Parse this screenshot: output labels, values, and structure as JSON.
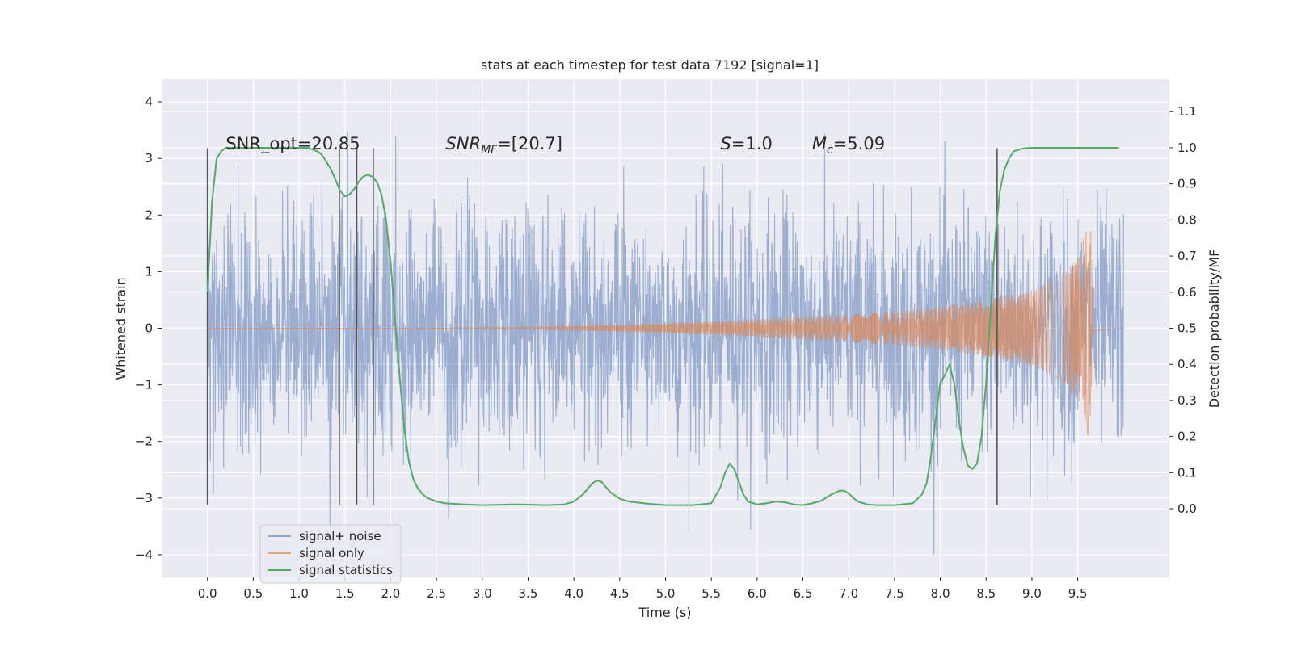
{
  "chart_data": {
    "type": "line",
    "title": "stats at each timestep for test data 7192 [signal=1]",
    "xlabel": "Time (s)",
    "ylabel": "Whitened strain",
    "ylabel_right": "Detection probability/MF",
    "xlim": [
      -0.5,
      10.5
    ],
    "ylim": [
      -4.4,
      4.4
    ],
    "ylim_right": [
      -0.19,
      1.19
    ],
    "x_ticks": [
      0.0,
      0.5,
      1.0,
      1.5,
      2.0,
      2.5,
      3.0,
      3.5,
      4.0,
      4.5,
      5.0,
      5.5,
      6.0,
      6.5,
      7.0,
      7.5,
      8.0,
      8.5,
      9.0,
      9.5
    ],
    "x_tick_labels": [
      "0.0",
      "0.5",
      "1.0",
      "1.5",
      "2.0",
      "2.5",
      "3.0",
      "3.5",
      "4.0",
      "4.5",
      "5.0",
      "5.5",
      "6.0",
      "6.5",
      "7.0",
      "7.5",
      "8.0",
      "8.5",
      "9.0",
      "9.5"
    ],
    "y_ticks": [
      4,
      3,
      2,
      1,
      0,
      -1,
      -2,
      -3,
      -4
    ],
    "y_tick_labels": [
      "4",
      "3",
      "2",
      "1",
      "0",
      "−1",
      "−2",
      "−3",
      "−4"
    ],
    "y_right_ticks": [
      1.1,
      1.0,
      0.9,
      0.8,
      0.7,
      0.6,
      0.5,
      0.4,
      0.3,
      0.2,
      0.1,
      0.0
    ],
    "y_right_tick_labels": [
      "1.1",
      "1.0",
      "0.9",
      "0.8",
      "0.7",
      "0.6",
      "0.5",
      "0.4",
      "0.3",
      "0.2",
      "0.1",
      "0.0"
    ],
    "grid": true,
    "legend_position": "lower-left",
    "colors": {
      "background": "#eaeaf2",
      "noise": "#4c72b0",
      "signal": "#dd8452",
      "stats": "#55a868",
      "vlines": "#555555"
    },
    "series": [
      {
        "name": "signal+ noise",
        "axis": "left",
        "noise_sd": 1.0,
        "x_range": [
          0.0,
          10.0
        ]
      },
      {
        "name": "signal only",
        "axis": "left",
        "description_amplitude_envelope": [
          [
            0.0,
            0.0
          ],
          [
            2.5,
            0.0
          ],
          [
            3.5,
            0.02
          ],
          [
            4.5,
            0.06
          ],
          [
            5.5,
            0.12
          ],
          [
            6.5,
            0.2
          ],
          [
            7.5,
            0.3
          ],
          [
            8.0,
            0.38
          ],
          [
            8.5,
            0.5
          ],
          [
            9.0,
            0.68
          ],
          [
            9.3,
            0.9
          ],
          [
            9.5,
            1.25
          ],
          [
            9.6,
            1.8
          ],
          [
            9.65,
            2.2
          ],
          [
            9.67,
            0.05
          ],
          [
            10.0,
            0.0
          ]
        ]
      },
      {
        "name": "signal statistics",
        "axis": "right",
        "x": [
          0.0,
          0.05,
          0.1,
          0.15,
          0.2,
          0.3,
          0.5,
          0.8,
          1.0,
          1.1,
          1.15,
          1.2,
          1.25,
          1.3,
          1.35,
          1.4,
          1.45,
          1.5,
          1.55,
          1.6,
          1.65,
          1.7,
          1.75,
          1.8,
          1.85,
          1.9,
          1.95,
          2.0,
          2.05,
          2.1,
          2.15,
          2.2,
          2.25,
          2.3,
          2.35,
          2.4,
          2.5,
          2.6,
          2.8,
          3.0,
          3.4,
          3.7,
          3.9,
          4.0,
          4.1,
          4.2,
          4.25,
          4.3,
          4.35,
          4.4,
          4.5,
          4.6,
          4.8,
          5.0,
          5.3,
          5.5,
          5.6,
          5.65,
          5.7,
          5.75,
          5.8,
          5.85,
          5.9,
          6.0,
          6.1,
          6.2,
          6.3,
          6.4,
          6.5,
          6.6,
          6.7,
          6.8,
          6.9,
          6.95,
          7.0,
          7.05,
          7.1,
          7.2,
          7.3,
          7.5,
          7.7,
          7.8,
          7.85,
          7.9,
          7.95,
          8.0,
          8.05,
          8.1,
          8.15,
          8.2,
          8.25,
          8.3,
          8.35,
          8.4,
          8.45,
          8.5,
          8.55,
          8.6,
          8.65,
          8.7,
          8.75,
          8.8,
          8.9,
          9.0,
          9.5,
          9.95
        ],
        "values": [
          0.6,
          0.85,
          0.97,
          0.99,
          1.0,
          1.0,
          1.0,
          1.0,
          1.0,
          1.0,
          0.995,
          0.99,
          0.98,
          0.96,
          0.94,
          0.91,
          0.88,
          0.865,
          0.87,
          0.885,
          0.905,
          0.92,
          0.925,
          0.92,
          0.905,
          0.87,
          0.8,
          0.68,
          0.52,
          0.36,
          0.22,
          0.13,
          0.08,
          0.055,
          0.04,
          0.03,
          0.02,
          0.015,
          0.012,
          0.01,
          0.012,
          0.01,
          0.012,
          0.02,
          0.04,
          0.07,
          0.078,
          0.075,
          0.06,
          0.045,
          0.028,
          0.02,
          0.014,
          0.01,
          0.01,
          0.015,
          0.06,
          0.1,
          0.125,
          0.11,
          0.075,
          0.04,
          0.02,
          0.012,
          0.015,
          0.02,
          0.018,
          0.012,
          0.01,
          0.015,
          0.022,
          0.038,
          0.05,
          0.05,
          0.042,
          0.03,
          0.02,
          0.012,
          0.01,
          0.01,
          0.015,
          0.04,
          0.07,
          0.15,
          0.25,
          0.35,
          0.37,
          0.4,
          0.35,
          0.25,
          0.17,
          0.12,
          0.11,
          0.125,
          0.2,
          0.35,
          0.55,
          0.75,
          0.88,
          0.94,
          0.97,
          0.99,
          0.998,
          1.0,
          1.0,
          1.0
        ]
      }
    ],
    "vertical_lines_x": [
      0.0,
      1.44,
      1.63,
      1.81,
      8.62
    ],
    "annotations": [
      {
        "label": "SNR_opt=20.85",
        "x": 0.2,
        "y_right": 0.995
      },
      {
        "label": "=[20.7]",
        "prefix": "SNR",
        "prefix_sub": "MF",
        "x": 2.6,
        "y_right": 0.995
      },
      {
        "label": "=1.0",
        "prefix": "S",
        "x": 5.6,
        "y_right": 0.995
      },
      {
        "label": "=5.09",
        "prefix": "M",
        "prefix_sub": "c",
        "x": 6.6,
        "y_right": 0.995
      }
    ]
  }
}
